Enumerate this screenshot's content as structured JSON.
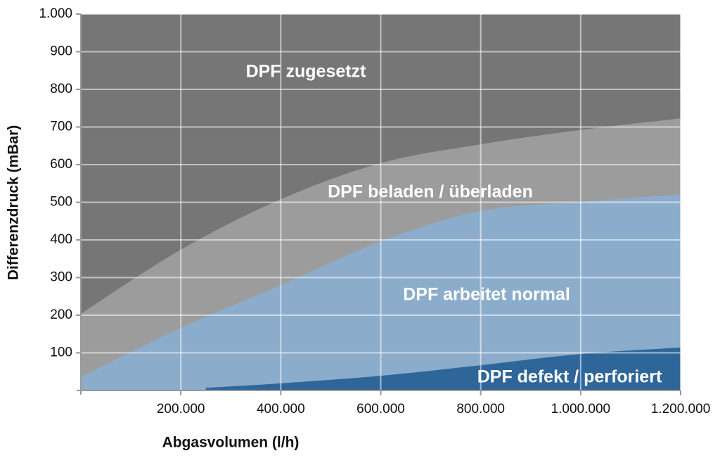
{
  "chart_data": {
    "type": "area",
    "background_label": "DPF zugesetzt",
    "background_color": "#767676",
    "areas": [
      {
        "label": "DPF beladen / überladen",
        "color": "#9c9c9c",
        "x": [
          0,
          200000,
          400000,
          600000,
          800000,
          1000000,
          1200000
        ],
        "values": [
          204,
          374,
          508,
          604,
          654,
          692,
          723
        ]
      },
      {
        "label": "DPF arbeitet normal",
        "color": "#8caccb",
        "x": [
          0,
          200000,
          400000,
          600000,
          800000,
          1000000,
          1200000
        ],
        "values": [
          36,
          166,
          280,
          396,
          477,
          501,
          521
        ]
      },
      {
        "label": "DPF defekt / perforiert",
        "color": "#2f6699",
        "x": [
          250000,
          400000,
          600000,
          800000,
          1000000,
          1200000
        ],
        "values": [
          7,
          19,
          39,
          67,
          97,
          114
        ]
      }
    ],
    "x_label": "Abgasvolumen (l/h)",
    "y_label": "Differenzdruck (mBar)",
    "xlim": [
      0,
      1200000
    ],
    "ylim": [
      0,
      1000
    ],
    "xticks": [
      {
        "value": 200000,
        "label": "200.000"
      },
      {
        "value": 400000,
        "label": "400.000"
      },
      {
        "value": 600000,
        "label": "600.000"
      },
      {
        "value": 800000,
        "label": "800.000"
      },
      {
        "value": 1000000,
        "label": "1.000.000"
      },
      {
        "value": 1200000,
        "label": "1.200.000"
      }
    ],
    "yticks": [
      100,
      200,
      300,
      400,
      500,
      600,
      700,
      800,
      900,
      {
        "value": 1000,
        "label": "1.000"
      }
    ],
    "grid": true
  }
}
